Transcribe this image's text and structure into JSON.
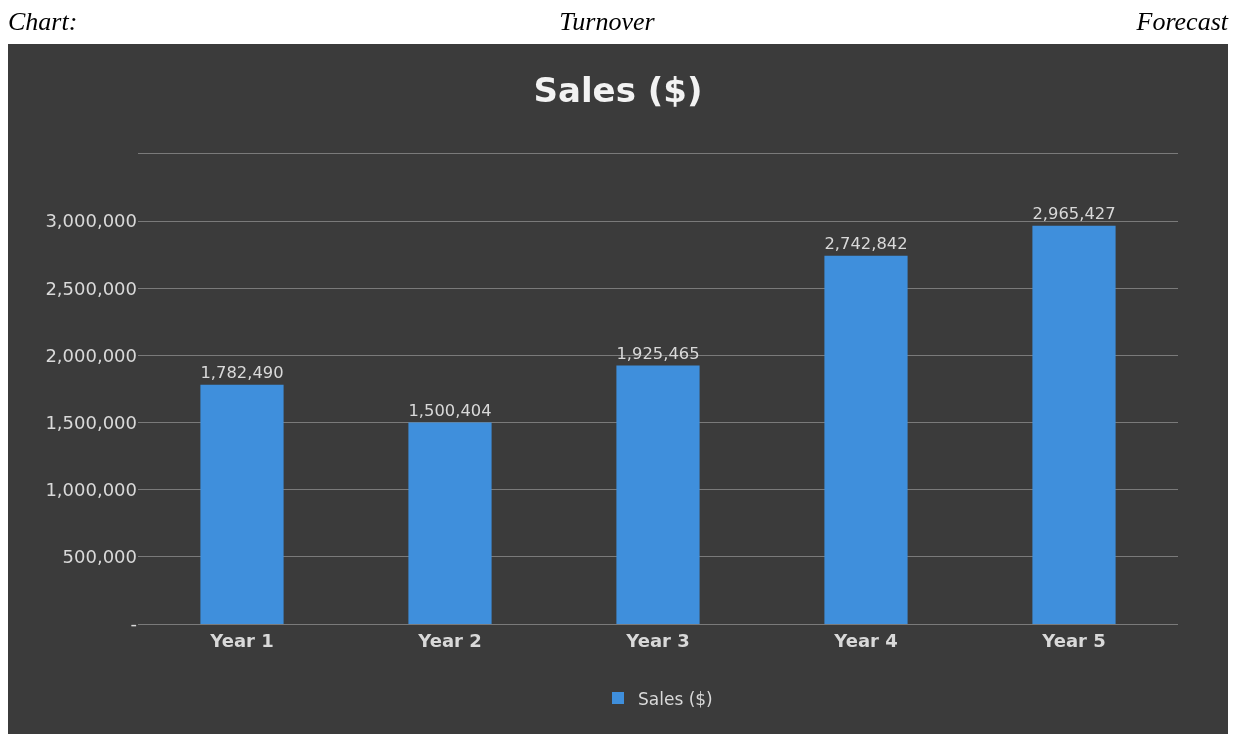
{
  "chart_data": {
    "type": "bar",
    "title": "Sales ($)",
    "annotations": [
      "Chart: Turnover Forecast"
    ],
    "categories": [
      "Year 1",
      "Year 2",
      "Year 3",
      "Year 4",
      "Year 5"
    ],
    "series": [
      {
        "name": "Sales ($)",
        "color": "#3f8fdc",
        "values": [
          1782490,
          1500404,
          1925465,
          2742842,
          2965427
        ],
        "value_labels": [
          "1,782,490",
          "1,500,404",
          "1,925,465",
          "2,742,842",
          "2,965,427"
        ]
      }
    ],
    "ylim": [
      0,
      3500000
    ],
    "yticks": [
      {
        "value": 0,
        "label": "-"
      },
      {
        "value": 500000,
        "label": "500,000"
      },
      {
        "value": 1000000,
        "label": "1,000,000"
      },
      {
        "value": 1500000,
        "label": "1,500,000"
      },
      {
        "value": 2000000,
        "label": "2,000,000"
      },
      {
        "value": 2500000,
        "label": "2,500,000"
      },
      {
        "value": 3000000,
        "label": "3,000,000"
      },
      {
        "value": 3500000,
        "label": null
      }
    ],
    "grid": "y",
    "legend": "bottom"
  }
}
